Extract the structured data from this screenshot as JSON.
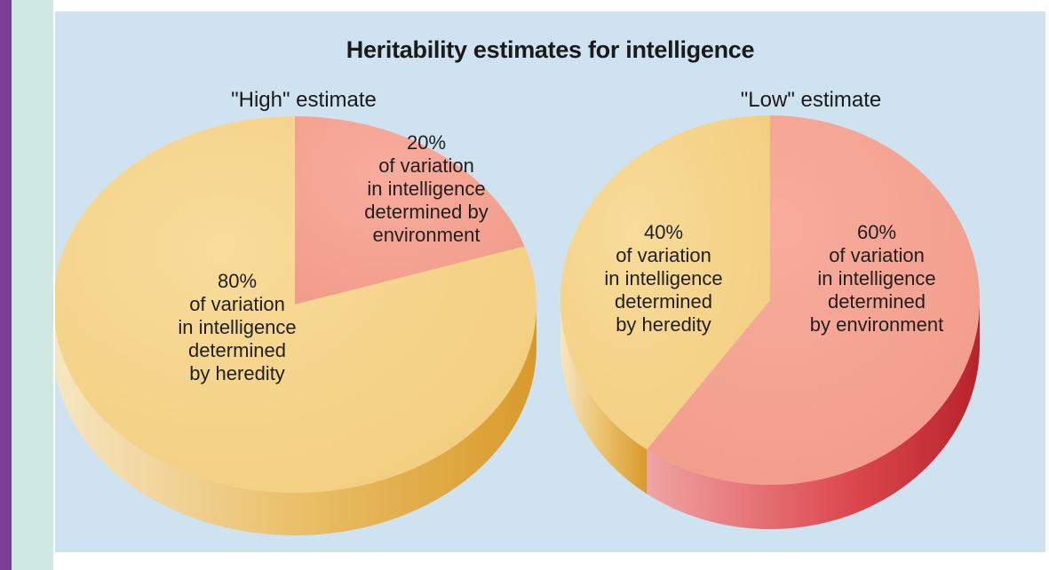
{
  "chart_data": [
    {
      "type": "pie",
      "title": "Heritability estimates for intelligence",
      "subtitle": "\"High\" estimate",
      "slices": [
        {
          "value": 20,
          "label": "20%",
          "desc": [
            "of variation",
            "in intelligence",
            "determined by",
            "environment"
          ],
          "color": "#f5a493"
        },
        {
          "value": 80,
          "label": "80%",
          "desc": [
            "of variation",
            "in intelligence",
            "determined",
            "by heredity"
          ],
          "color": "#f5d28a"
        }
      ]
    },
    {
      "type": "pie",
      "subtitle": "\"Low\" estimate",
      "slices": [
        {
          "value": 60,
          "label": "60%",
          "desc": [
            "of variation",
            "in intelligence",
            "determined",
            "by environment"
          ],
          "color": "#f5a493"
        },
        {
          "value": 40,
          "label": "40%",
          "desc": [
            "of variation",
            "in intelligence",
            "determined",
            "by heredity"
          ],
          "color": "#f5d28a"
        }
      ]
    }
  ],
  "colors": {
    "accent_bar": "#7b3f98",
    "mint": "#cfe8e2",
    "panel_bg": "#cfe2ef",
    "environment": "#f5a493",
    "environment_side": "#d9343b",
    "heredity": "#f5d28a",
    "heredity_side": "#e5b14a"
  }
}
